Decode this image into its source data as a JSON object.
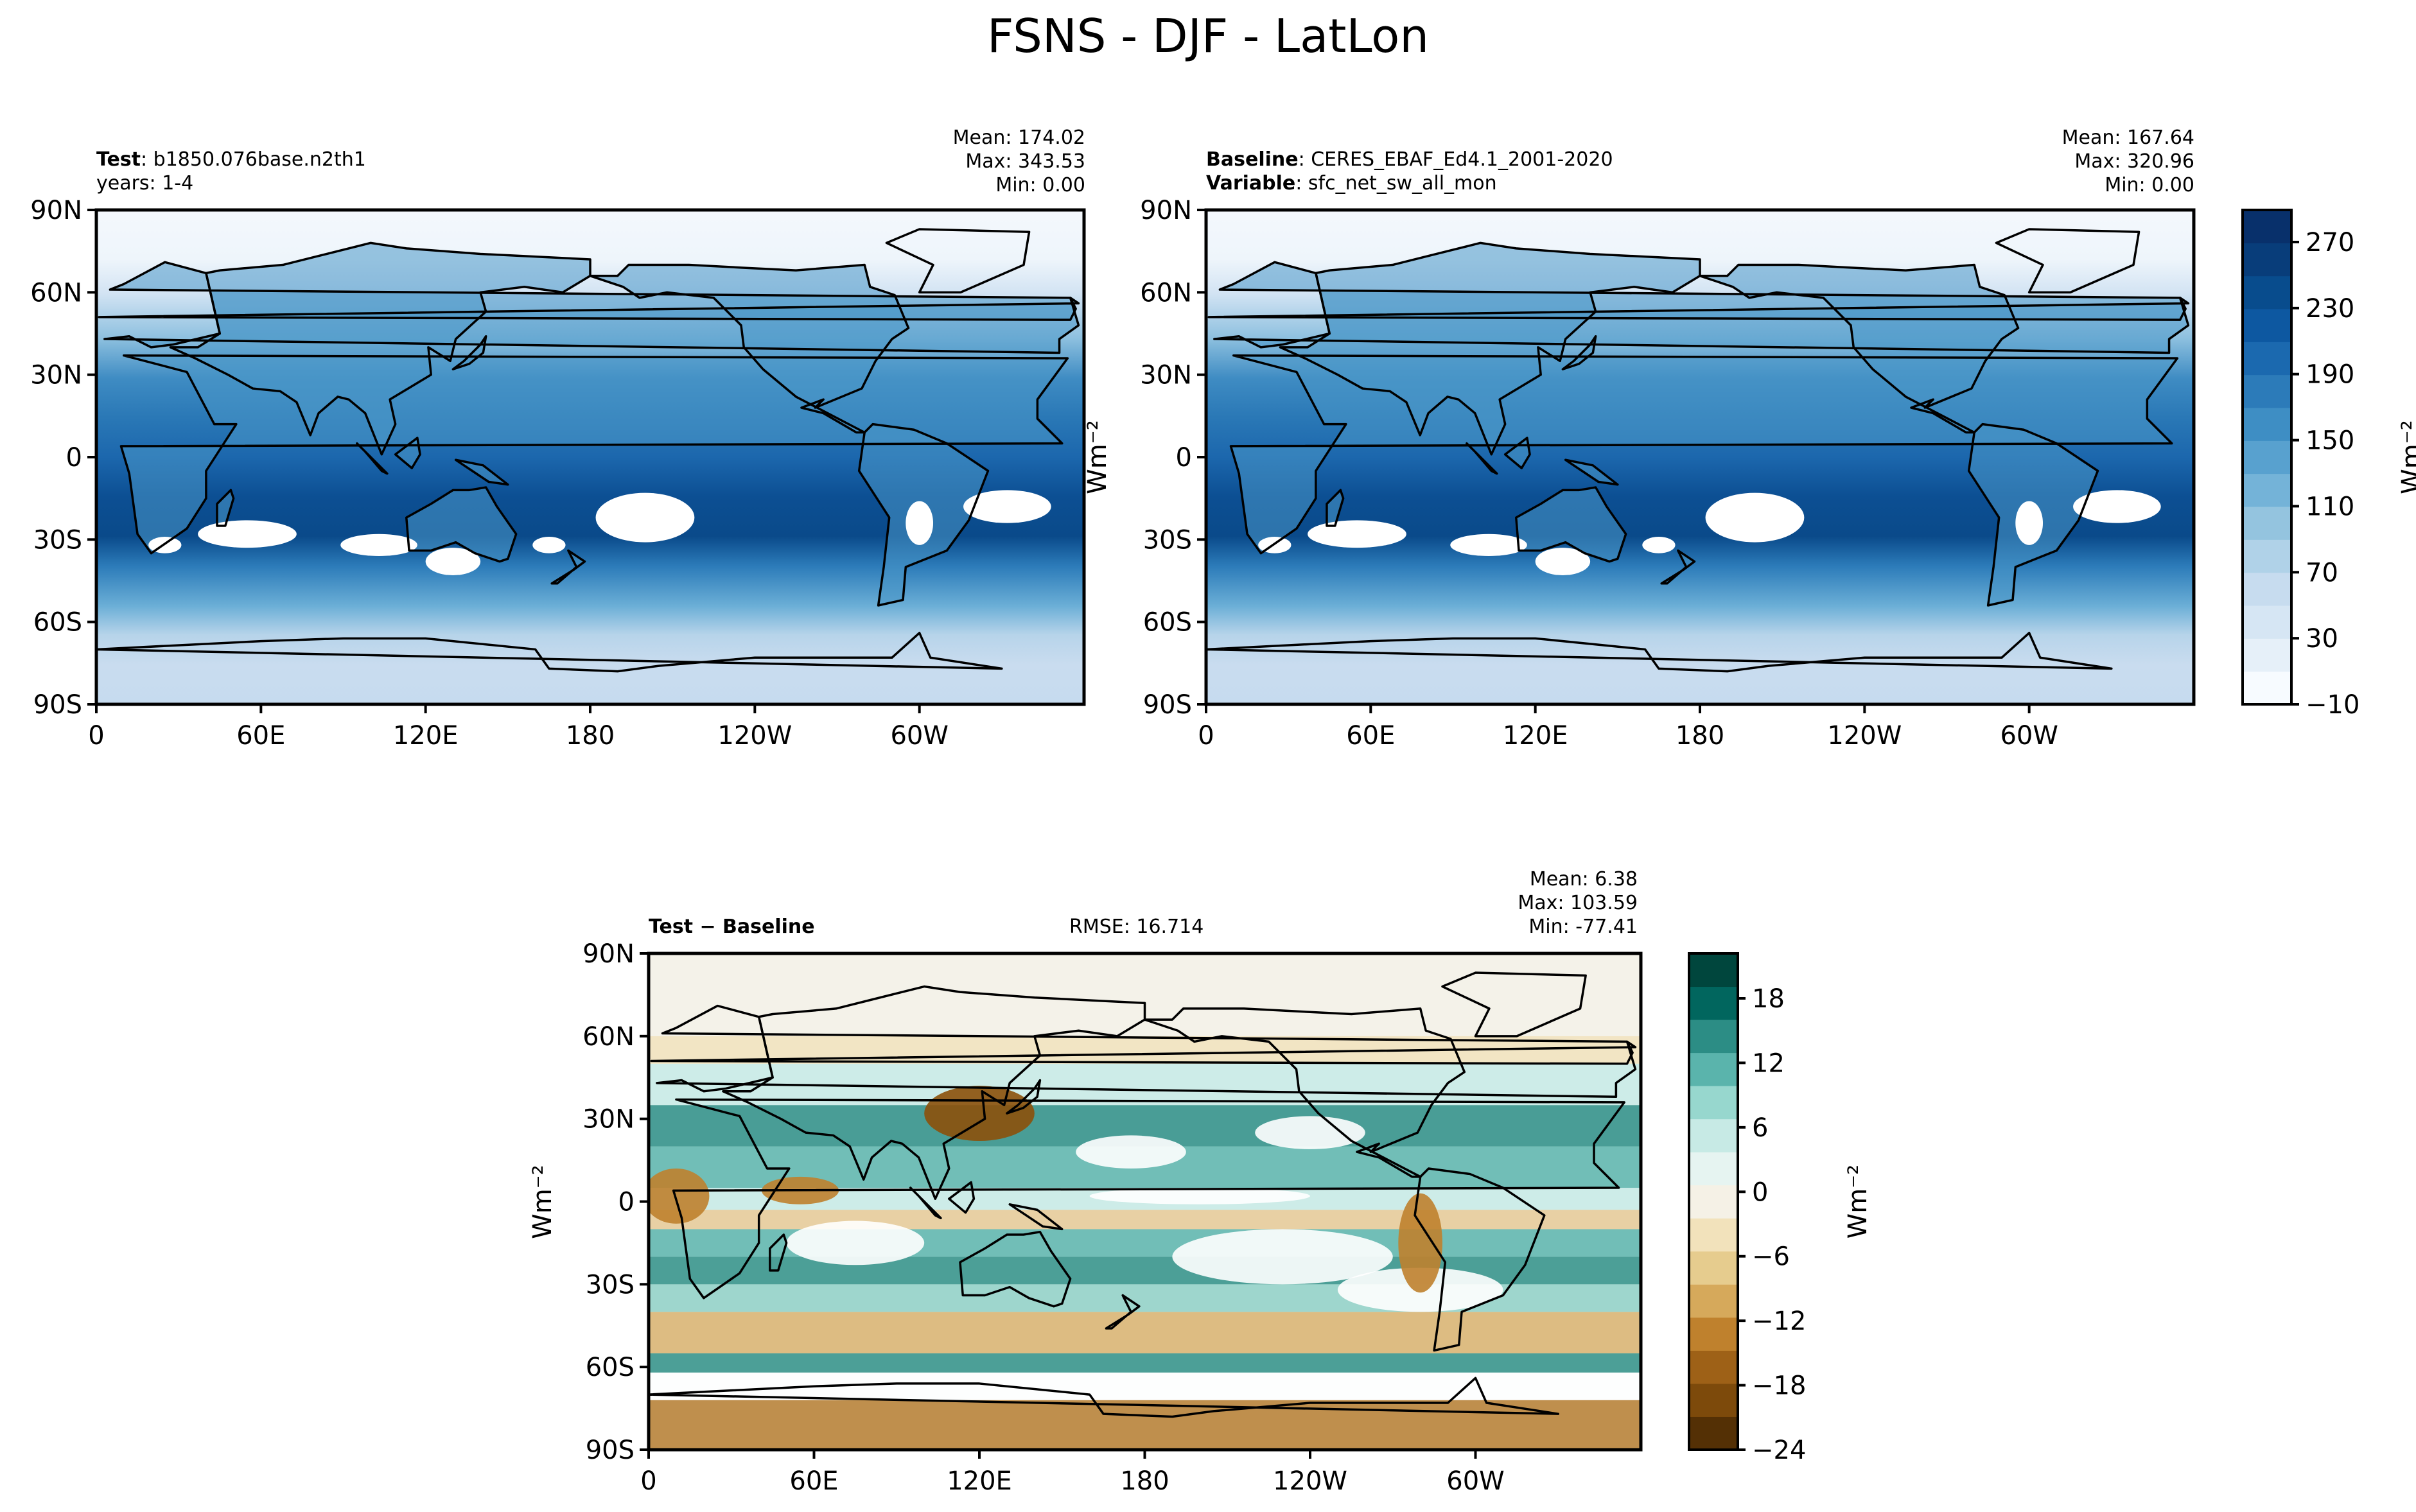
{
  "figure": {
    "title": "FSNS - DJF - LatLon"
  },
  "panels": {
    "test": {
      "label_bold": "Test",
      "label_rest": ": b1850.076base.n2th1",
      "line2": "years: 1-4",
      "mean": "Mean: 174.02",
      "max": "Max: 343.53",
      "min": "Min:  0.00",
      "ylabel": "Wm⁻²"
    },
    "baseline": {
      "label_bold": "Baseline",
      "label_rest": ": CERES_EBAF_Ed4.1_2001-2020",
      "line2_bold": "Variable",
      "line2_rest": ": sfc_net_sw_all_mon",
      "mean": "Mean: 167.64",
      "max": "Max: 320.96",
      "min": "Min:  0.00"
    },
    "diff": {
      "label": "Test − Baseline",
      "rmse": "RMSE: 16.714",
      "mean": "Mean:  6.38",
      "max": "Max: 103.59",
      "min": "Min: -77.41",
      "ylabel": "Wm⁻²"
    }
  },
  "axes": {
    "lat_ticks": [
      "90N",
      "60N",
      "30N",
      "0",
      "30S",
      "60S",
      "90S"
    ],
    "lon_ticks": [
      "0",
      "60E",
      "120E",
      "180",
      "120W",
      "60W"
    ]
  },
  "colorbars": {
    "main": {
      "label": "Wm⁻²",
      "ticks": [
        "270",
        "230",
        "190",
        "150",
        "110",
        "70",
        "30",
        "−10"
      ],
      "colors": [
        "#f7fbff",
        "#e6f0f9",
        "#d6e6f4",
        "#c7dcef",
        "#b0d2e8",
        "#94c4df",
        "#74b3d8",
        "#58a1cf",
        "#3e8ec4",
        "#2c7bb9",
        "#1b69af",
        "#0d58a1",
        "#084c8d",
        "#083d7a",
        "#08306b"
      ]
    },
    "diff": {
      "label": "Wm⁻²",
      "ticks": [
        "18",
        "12",
        "6",
        "0",
        "−6",
        "−12",
        "−18",
        "−24"
      ],
      "colors": [
        "#543005",
        "#7d4a0b",
        "#9e6117",
        "#bf812d",
        "#d6a95b",
        "#e6cc8e",
        "#f2e2bb",
        "#f5f1e6",
        "#e6f4f1",
        "#c7eae5",
        "#97d7ce",
        "#5ab4ac",
        "#2c8d85",
        "#01665e",
        "#00463d"
      ]
    }
  },
  "chart_data": [
    {
      "type": "heatmap",
      "title": "Test",
      "xlabel": "",
      "ylabel": "",
      "x_ticks": [
        "0",
        "60E",
        "120E",
        "180",
        "120W",
        "60W"
      ],
      "y_ticks": [
        "90N",
        "60N",
        "30N",
        "0",
        "30S",
        "60S",
        "90S"
      ],
      "value_range": [
        0.0,
        343.53
      ],
      "mean": 174.02,
      "colorbar_range": [
        -10,
        290
      ],
      "colormap": "Blues"
    },
    {
      "type": "heatmap",
      "title": "Baseline",
      "xlabel": "",
      "ylabel": "",
      "x_ticks": [
        "0",
        "60E",
        "120E",
        "180",
        "120W",
        "60W"
      ],
      "y_ticks": [
        "90N",
        "60N",
        "30N",
        "0",
        "30S",
        "60S",
        "90S"
      ],
      "value_range": [
        0.0,
        320.96
      ],
      "mean": 167.64,
      "colorbar_range": [
        -10,
        290
      ],
      "colormap": "Blues"
    },
    {
      "type": "heatmap",
      "title": "Test − Baseline",
      "xlabel": "",
      "ylabel": "Wm⁻²",
      "x_ticks": [
        "0",
        "60E",
        "120E",
        "180",
        "120W",
        "60W"
      ],
      "y_ticks": [
        "90N",
        "60N",
        "30N",
        "0",
        "30S",
        "60S",
        "90S"
      ],
      "value_range": [
        -77.41,
        103.59
      ],
      "mean": 6.38,
      "rmse": 16.714,
      "colorbar_range": [
        -24,
        21
      ],
      "colormap": "BrBG"
    }
  ]
}
